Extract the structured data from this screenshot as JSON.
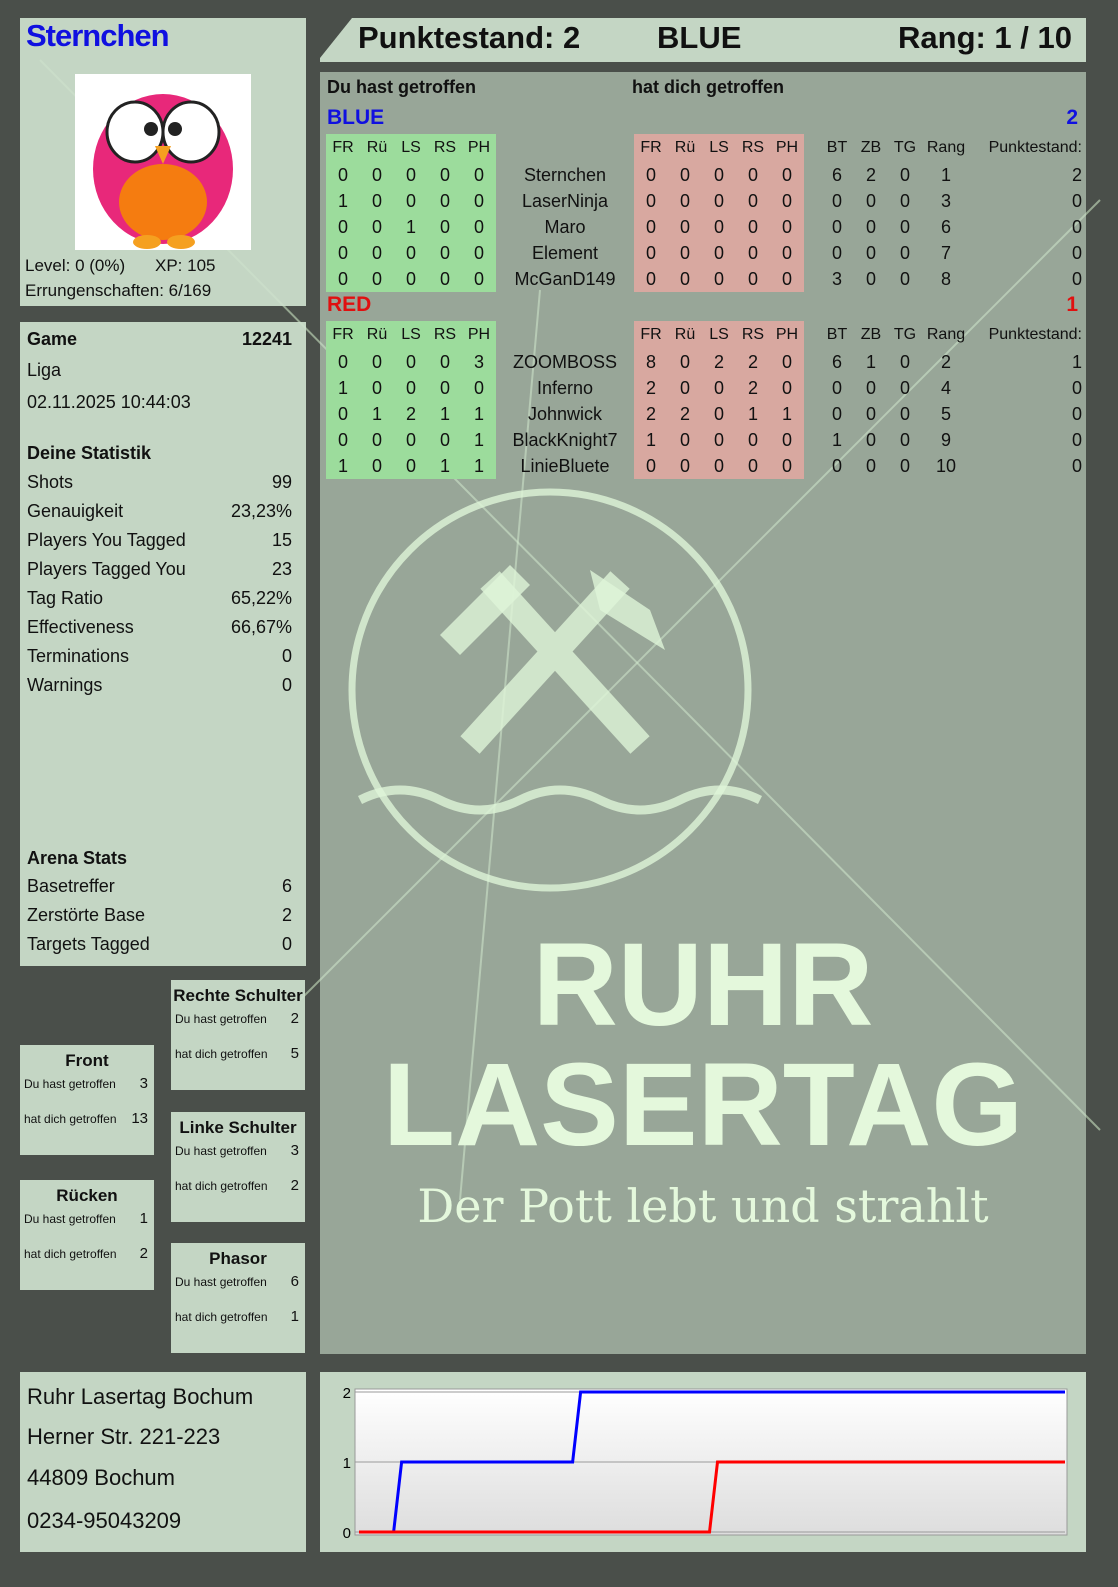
{
  "player": {
    "name": "Sternchen",
    "level": "Level: 0 (0%)",
    "xp": "XP: 105",
    "achievements": "Errungenschaften: 6/169",
    "avatar": "owl-avatar"
  },
  "header": {
    "score": "Punktestand: 2",
    "team": "BLUE",
    "rank": "Rang: 1 / 10"
  },
  "game": {
    "label": "Game",
    "id": "12241",
    "mode": "Liga",
    "datetime": "02.11.2025 10:44:03"
  },
  "stats": {
    "title": "Deine Statistik",
    "items": [
      {
        "label": "Shots",
        "value": "99"
      },
      {
        "label": "Genauigkeit",
        "value": "23,23%"
      },
      {
        "label": "Players You Tagged",
        "value": "15"
      },
      {
        "label": "Players Tagged You",
        "value": "23"
      },
      {
        "label": "Tag Ratio",
        "value": "65,22%"
      },
      {
        "label": "Effectiveness",
        "value": "66,67%"
      },
      {
        "label": "Terminations",
        "value": "0"
      },
      {
        "label": "Warnings",
        "value": "0"
      }
    ]
  },
  "arena": {
    "title": "Arena Stats",
    "items": [
      {
        "label": "Basetreffer",
        "value": "6"
      },
      {
        "label": "Zerstörte Base",
        "value": "2"
      },
      {
        "label": "Targets Tagged",
        "value": "0"
      }
    ]
  },
  "zones": {
    "hit_label": "Du hast getroffen",
    "got_label": "hat dich getroffen",
    "items": [
      {
        "name": "Rechte Schulter",
        "hit": "2",
        "got": "5"
      },
      {
        "name": "Front",
        "hit": "3",
        "got": "13"
      },
      {
        "name": "Linke Schulter",
        "hit": "3",
        "got": "2"
      },
      {
        "name": "Rücken",
        "hit": "1",
        "got": "2"
      },
      {
        "name": "Phasor",
        "hit": "6",
        "got": "1"
      }
    ]
  },
  "table": {
    "you_hit": "Du hast getroffen",
    "hit_you": "hat dich getroffen",
    "zone_cols": [
      "FR",
      "Rü",
      "LS",
      "RS",
      "PH"
    ],
    "stat_cols": [
      "BT",
      "ZB",
      "TG",
      "Rang"
    ],
    "score_col": "Punktestand:",
    "teams": [
      {
        "name": "BLUE",
        "score": "2",
        "color": "#1010e0",
        "players": [
          {
            "name": "Sternchen",
            "hit": [
              "0",
              "0",
              "0",
              "0",
              "0"
            ],
            "got": [
              "0",
              "0",
              "0",
              "0",
              "0"
            ],
            "stats": [
              "6",
              "2",
              "0",
              "1"
            ],
            "score": "2"
          },
          {
            "name": "LaserNinja",
            "hit": [
              "1",
              "0",
              "0",
              "0",
              "0"
            ],
            "got": [
              "0",
              "0",
              "0",
              "0",
              "0"
            ],
            "stats": [
              "0",
              "0",
              "0",
              "3"
            ],
            "score": "0"
          },
          {
            "name": "Maro",
            "hit": [
              "0",
              "0",
              "1",
              "0",
              "0"
            ],
            "got": [
              "0",
              "0",
              "0",
              "0",
              "0"
            ],
            "stats": [
              "0",
              "0",
              "0",
              "6"
            ],
            "score": "0"
          },
          {
            "name": "Element",
            "hit": [
              "0",
              "0",
              "0",
              "0",
              "0"
            ],
            "got": [
              "0",
              "0",
              "0",
              "0",
              "0"
            ],
            "stats": [
              "0",
              "0",
              "0",
              "7"
            ],
            "score": "0"
          },
          {
            "name": "McGanD149",
            "hit": [
              "0",
              "0",
              "0",
              "0",
              "0"
            ],
            "got": [
              "0",
              "0",
              "0",
              "0",
              "0"
            ],
            "stats": [
              "3",
              "0",
              "0",
              "8"
            ],
            "score": "0"
          }
        ]
      },
      {
        "name": "RED",
        "score": "1",
        "color": "#e01010",
        "players": [
          {
            "name": "ZOOMBOSS",
            "hit": [
              "0",
              "0",
              "0",
              "0",
              "3"
            ],
            "got": [
              "8",
              "0",
              "2",
              "2",
              "0"
            ],
            "stats": [
              "6",
              "1",
              "0",
              "2"
            ],
            "score": "1"
          },
          {
            "name": "Inferno",
            "hit": [
              "1",
              "0",
              "0",
              "0",
              "0"
            ],
            "got": [
              "2",
              "0",
              "0",
              "2",
              "0"
            ],
            "stats": [
              "0",
              "0",
              "0",
              "4"
            ],
            "score": "0"
          },
          {
            "name": "Johnwick",
            "hit": [
              "0",
              "1",
              "2",
              "1",
              "1"
            ],
            "got": [
              "2",
              "2",
              "0",
              "1",
              "1"
            ],
            "stats": [
              "0",
              "0",
              "0",
              "5"
            ],
            "score": "0"
          },
          {
            "name": "BlackKnight7",
            "hit": [
              "0",
              "0",
              "0",
              "0",
              "1"
            ],
            "got": [
              "1",
              "0",
              "0",
              "0",
              "0"
            ],
            "stats": [
              "1",
              "0",
              "0",
              "9"
            ],
            "score": "0"
          },
          {
            "name": "LinieBluete",
            "hit": [
              "1",
              "0",
              "0",
              "1",
              "1"
            ],
            "got": [
              "0",
              "0",
              "0",
              "0",
              "0"
            ],
            "stats": [
              "0",
              "0",
              "0",
              "10"
            ],
            "score": "0"
          }
        ]
      }
    ]
  },
  "logo": {
    "line1": "RUHR",
    "line2": "LASERTAG",
    "slogan": "Der Pott lebt und strahlt"
  },
  "address": {
    "name": "Ruhr Lasertag Bochum",
    "street": "Herner Str. 221-223",
    "city": "44809 Bochum",
    "phone": "0234-95043209"
  },
  "chart_data": {
    "type": "line",
    "step": true,
    "ylim": [
      0,
      2
    ],
    "yticks": [
      "0",
      "1",
      "2"
    ],
    "xlim": [
      0,
      1
    ],
    "series": [
      {
        "color": "#0000ff",
        "x": [
          0,
          0.055,
          0.31,
          1
        ],
        "y": [
          0,
          1,
          2,
          2
        ]
      },
      {
        "color": "#ff0000",
        "x": [
          0,
          0.505,
          1
        ],
        "y": [
          0,
          1,
          1
        ]
      }
    ]
  }
}
